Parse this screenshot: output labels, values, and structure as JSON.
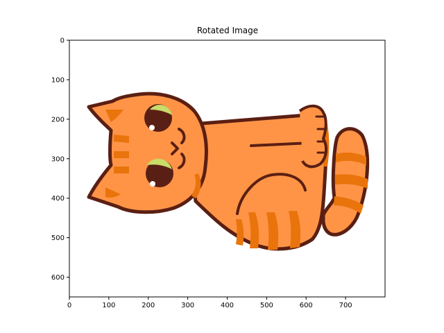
{
  "chart_data": {
    "type": "image",
    "title": "Rotated Image",
    "xlabel": "",
    "ylabel": "",
    "xlim": [
      0,
      800
    ],
    "ylim": [
      650,
      0
    ],
    "x_ticks": [
      0,
      100,
      200,
      300,
      400,
      500,
      600,
      700
    ],
    "y_ticks": [
      0,
      100,
      200,
      300,
      400,
      500,
      600
    ],
    "grid": false,
    "image_content": "cartoon-orange-cat-rotated",
    "colors": {
      "fur": "#ff9447",
      "stripes": "#e9740c",
      "outline": "#5b1f12",
      "eye": "#5a1f14",
      "eye_highlight": "#c8dc6a"
    }
  }
}
